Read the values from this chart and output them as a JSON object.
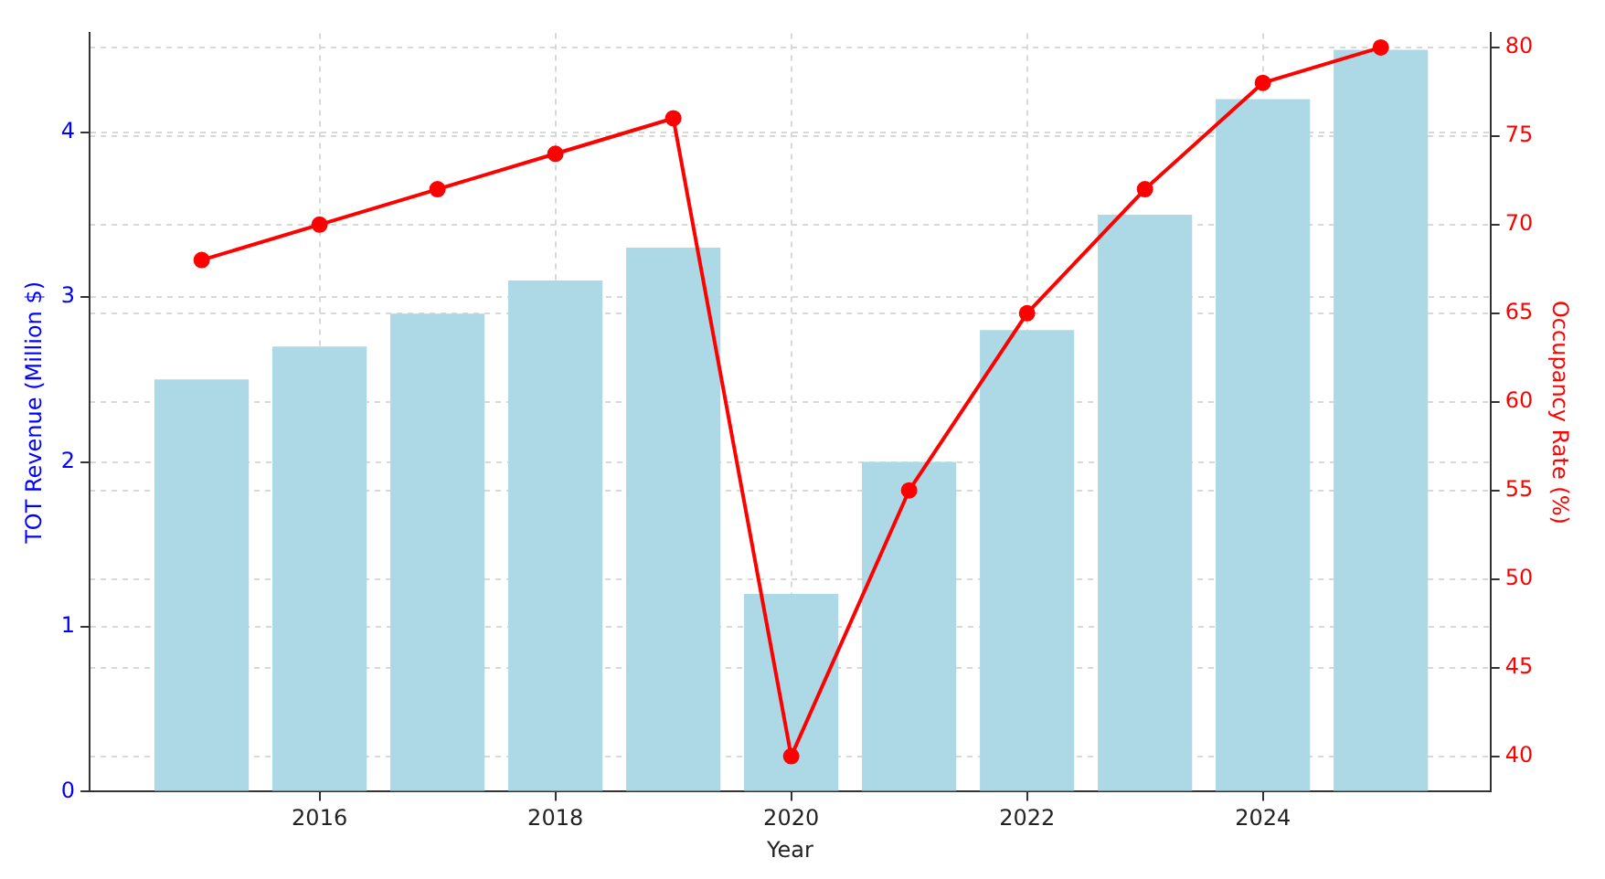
{
  "chart_data": {
    "type": "bar",
    "xlabel": "Year",
    "ylabel": "TOT Revenue (Million $)",
    "y2label": "Occupancy Rate (%)",
    "x": [
      2015,
      2016,
      2017,
      2018,
      2019,
      2020,
      2021,
      2022,
      2023,
      2024,
      2025
    ],
    "series": [
      {
        "color": "#add8e6",
        "values": [
          2.5,
          2.7,
          2.9,
          3.1,
          3.3,
          1.2,
          2.0,
          2.8,
          3.5,
          4.2,
          4.5
        ]
      },
      {
        "type": "line",
        "axis": "y2",
        "color": "#ff0000",
        "marker": "circle",
        "values": [
          68,
          70,
          72,
          74,
          76,
          40,
          55,
          65,
          72,
          78,
          80
        ]
      }
    ],
    "xlim": [
      2014.05,
      2025.93
    ],
    "xticks": [
      2016,
      2018,
      2020,
      2022,
      2024
    ],
    "ylim": [
      0,
      4.6
    ],
    "yticks": [
      0,
      1,
      2,
      3,
      4
    ],
    "y2lim": [
      38,
      80.8
    ],
    "y2ticks": [
      40,
      45,
      50,
      55,
      60,
      65,
      70,
      75,
      80
    ],
    "grid": true,
    "legend": false
  }
}
